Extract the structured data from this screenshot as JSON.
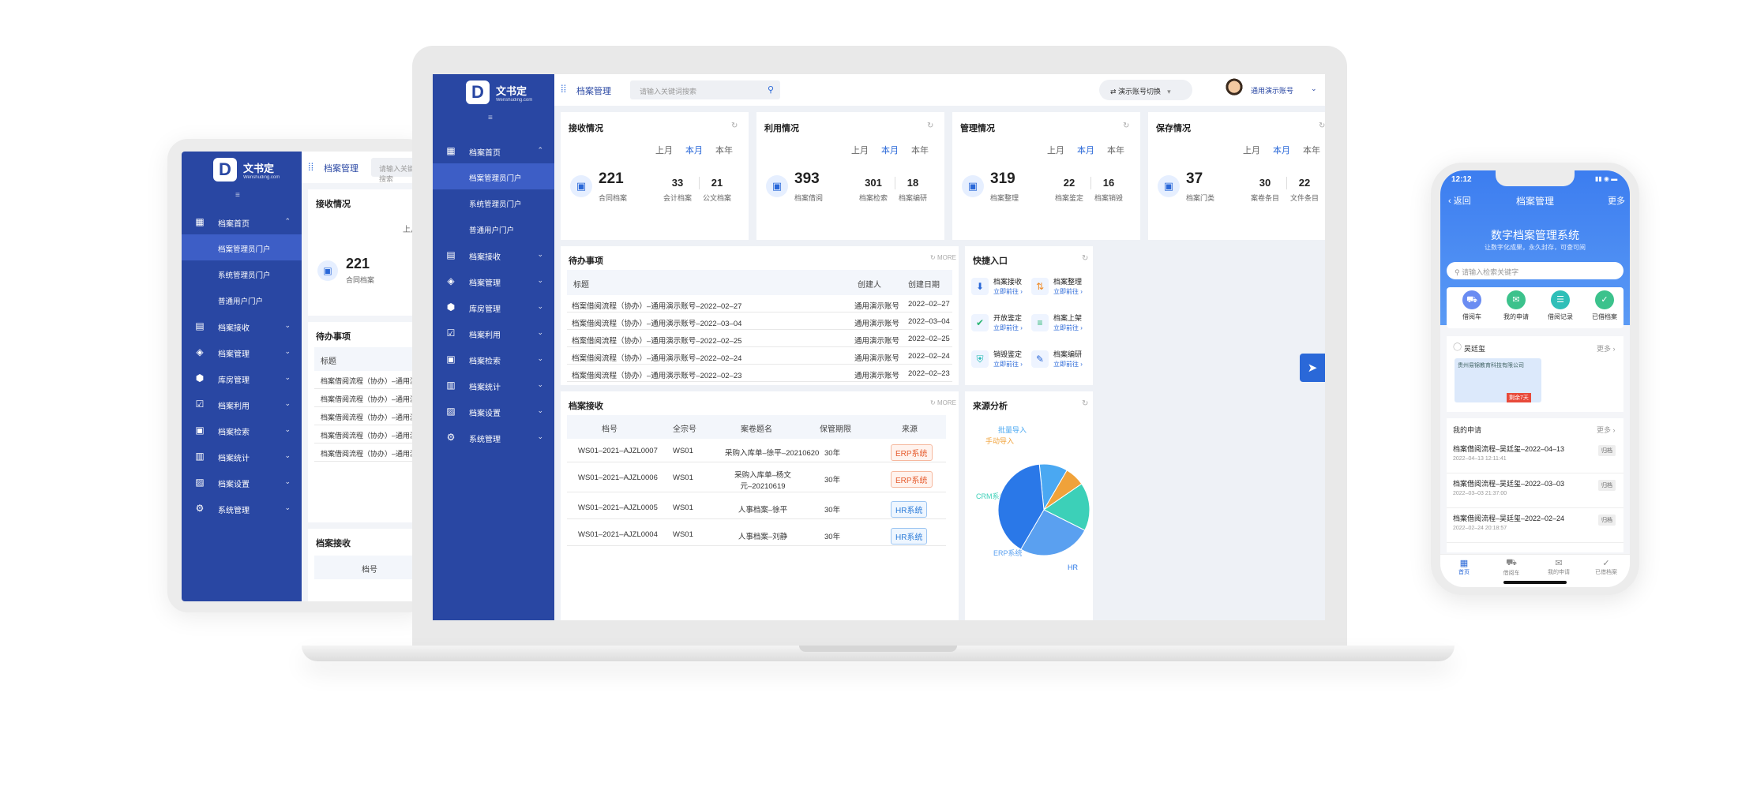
{
  "brand": {
    "name": "文书定",
    "sub": "Wenshuding.com"
  },
  "header": {
    "module": "档案管理",
    "search_placeholder": "请输入关键词搜索",
    "switch_label": "演示账号切换",
    "user": "通用演示账号"
  },
  "sidebar": {
    "items": [
      {
        "label": "档案首页",
        "icon": "home-icon",
        "open": true
      },
      {
        "label": "档案接收",
        "icon": "doc-icon"
      },
      {
        "label": "档案管理",
        "icon": "layers-icon"
      },
      {
        "label": "库房管理",
        "icon": "box-icon"
      },
      {
        "label": "档案利用",
        "icon": "check-icon"
      },
      {
        "label": "档案检索",
        "icon": "search-list-icon"
      },
      {
        "label": "档案统计",
        "icon": "bar-chart-icon"
      },
      {
        "label": "档案设置",
        "icon": "settings-doc-icon"
      },
      {
        "label": "系统管理",
        "icon": "gear-icon"
      }
    ],
    "sub": [
      "档案管理员门户",
      "系统管理员门户",
      "普通用户门户"
    ]
  },
  "period_tabs": [
    "上月",
    "本月",
    "本年"
  ],
  "stats": [
    {
      "title": "接收情况",
      "main": "221",
      "main_label": "合同档案",
      "a": "33",
      "a_label": "会计档案",
      "b": "21",
      "b_label": "公文档案"
    },
    {
      "title": "利用情况",
      "main": "393",
      "main_label": "档案借阅",
      "a": "301",
      "a_label": "档案检索",
      "b": "18",
      "b_label": "档案编研"
    },
    {
      "title": "管理情况",
      "main": "319",
      "main_label": "档案整理",
      "a": "22",
      "a_label": "档案鉴定",
      "b": "16",
      "b_label": "档案销毁"
    },
    {
      "title": "保存情况",
      "main": "37",
      "main_label": "档案门类",
      "a": "30",
      "a_label": "案卷条目",
      "b": "22",
      "b_label": "文件条目"
    }
  ],
  "todo": {
    "title": "待办事项",
    "more": "MORE",
    "cols": [
      "标题",
      "创建人",
      "创建日期"
    ],
    "rows": [
      {
        "t": "档案借阅流程（协办）–通用演示账号–2022–02–27",
        "u": "通用演示账号",
        "d": "2022–02–27"
      },
      {
        "t": "档案借阅流程（协办）–通用演示账号–2022–03–04",
        "u": "通用演示账号",
        "d": "2022–03–04"
      },
      {
        "t": "档案借阅流程（协办）–通用演示账号–2022–02–25",
        "u": "通用演示账号",
        "d": "2022–02–25"
      },
      {
        "t": "档案借阅流程（协办）–通用演示账号–2022–02–24",
        "u": "通用演示账号",
        "d": "2022–02–24"
      },
      {
        "t": "档案借阅流程（协办）–通用演示账号–2022–02–23",
        "u": "通用演示账号",
        "d": "2022–02–23"
      }
    ]
  },
  "quick": {
    "title": "快捷入口",
    "go": "立即前往 ›",
    "items": [
      {
        "label": "档案接收",
        "icon": "inbox-icon",
        "color": "#2a68d8"
      },
      {
        "label": "档案整理",
        "icon": "sort-icon",
        "color": "#f08a24"
      },
      {
        "label": "开放鉴定",
        "icon": "clipboard-check-icon",
        "color": "#2bb673"
      },
      {
        "label": "档案上架",
        "icon": "shelf-icon",
        "color": "#2bb673"
      },
      {
        "label": "销毁鉴定",
        "icon": "shield-icon",
        "color": "#19b7b0"
      },
      {
        "label": "档案编研",
        "icon": "edit-icon",
        "color": "#2a68d8"
      }
    ]
  },
  "receive": {
    "title": "档案接收",
    "more": "MORE",
    "cols": [
      "档号",
      "全宗号",
      "案卷题名",
      "保管期限",
      "来源"
    ],
    "rows": [
      {
        "no": "WS01–2021–AJZL0007",
        "q": "WS01",
        "name": "采购入库单–徐平–20210620",
        "name2": "",
        "term": "30年",
        "src": "ERP系统",
        "cls": "erp"
      },
      {
        "no": "WS01–2021–AJZL0006",
        "q": "WS01",
        "name": "采购入库单–杨文",
        "name2": "元–20210619",
        "term": "30年",
        "src": "ERP系统",
        "cls": "erp"
      },
      {
        "no": "WS01–2021–AJZL0005",
        "q": "WS01",
        "name": "人事档案–徐平",
        "name2": "",
        "term": "30年",
        "src": "HR系统",
        "cls": "hr"
      },
      {
        "no": "WS01–2021–AJZL0004",
        "q": "WS01",
        "name": "人事档案–刘静",
        "name2": "",
        "term": "30年",
        "src": "HR系统",
        "cls": "hr"
      }
    ]
  },
  "chart_data": {
    "type": "pie",
    "title": "来源分析",
    "labels": [
      "批量导入",
      "手动导入",
      "CRM系统",
      "ERP系统",
      "HR"
    ],
    "values": [
      10,
      7,
      17,
      26,
      40
    ],
    "colors": [
      "#4aa8f2",
      "#f0a23a",
      "#3cd0b8",
      "#5aa0f0",
      "#2a78e8"
    ]
  },
  "mobile": {
    "time": "12:12",
    "back": "返回",
    "title": "档案管理",
    "more": "更多",
    "hero": "数字档案管理系统",
    "hero_sub": "让数字化成果，永久封存，可查可阅",
    "search_placeholder": "请输入检索关键字",
    "shortcuts": [
      {
        "label": "借阅车",
        "icon": "cart-icon",
        "color": "#6a8cf2"
      },
      {
        "label": "我的申请",
        "icon": "apply-icon",
        "color": "#3cc28c"
      },
      {
        "label": "借阅记录",
        "icon": "record-icon",
        "color": "#2fbfb8"
      },
      {
        "label": "已借档案",
        "icon": "done-icon",
        "color": "#3cc28c"
      }
    ],
    "person": "吴廷玺",
    "more2": "更多 ›",
    "company": "贵州易锦教育科技有限公司",
    "badge": "剩余7天",
    "my_apply": "我的申请",
    "applies": [
      {
        "t": "档案借阅流程–吴廷玺–2022–04–13",
        "d": "2022–04–13 12:11:41",
        "s": "归档"
      },
      {
        "t": "档案借阅流程–吴廷玺–2022–03–03",
        "d": "2022–03–03 21:37:00",
        "s": "归档"
      },
      {
        "t": "档案借阅流程–吴廷玺–2022–02–24",
        "d": "2022–02–24 20:18:57",
        "s": "归档"
      }
    ],
    "nav": [
      "首页",
      "借阅车",
      "我的申请",
      "已借档案"
    ]
  }
}
